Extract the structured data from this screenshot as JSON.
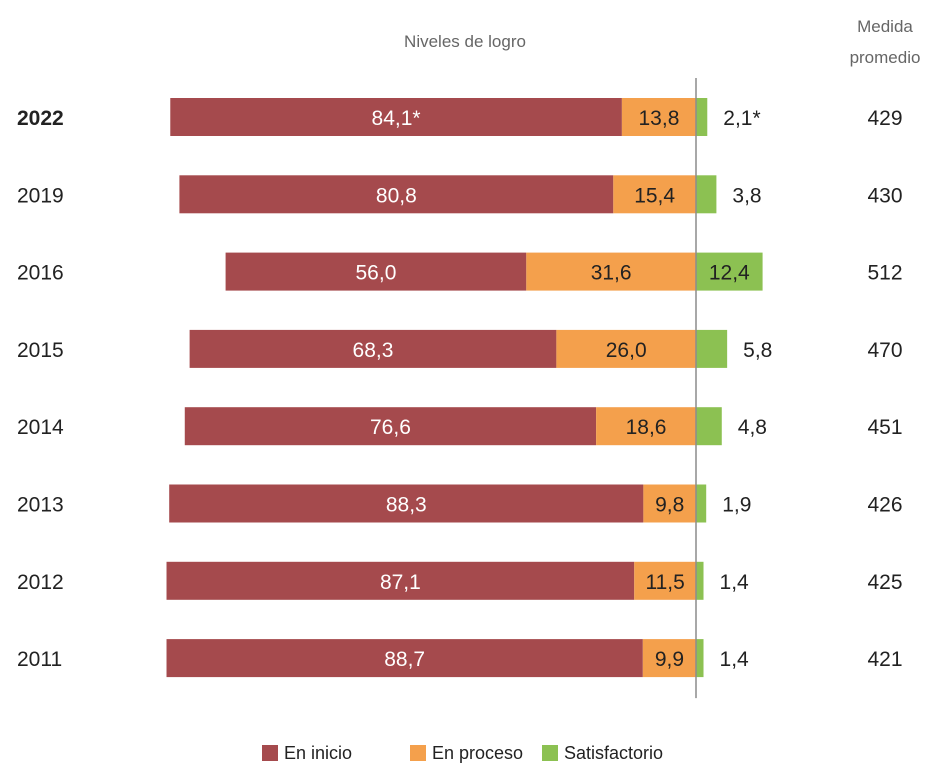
{
  "colors": {
    "en_inicio": "#A54A4D",
    "en_proceso": "#F4A04C",
    "satisfactorio": "#8CC152",
    "axis": "#8c8c8c"
  },
  "chart_data": {
    "type": "bar",
    "orientation": "horizontal",
    "stacked": true,
    "diverging": true,
    "header_levels": "Niveles de logro",
    "header_average_line1": "Medida",
    "header_average_line2": "promedio",
    "categories": [
      "2022",
      "2019",
      "2016",
      "2015",
      "2014",
      "2013",
      "2012",
      "2011"
    ],
    "bold_category": "2022",
    "series": [
      {
        "name": "En inicio",
        "values": [
          84.1,
          80.8,
          56.0,
          68.3,
          76.6,
          88.3,
          87.1,
          88.7
        ],
        "labels": [
          "84,1*",
          "80,8",
          "56,0",
          "68,3",
          "76,6",
          "88,3",
          "87,1",
          "88,7"
        ]
      },
      {
        "name": "En proceso",
        "values": [
          13.8,
          15.4,
          31.6,
          26.0,
          18.6,
          9.8,
          11.5,
          9.9
        ],
        "labels": [
          "13,8",
          "15,4",
          "31,6",
          "26,0",
          "18,6",
          "9,8",
          "11,5",
          "9,9"
        ]
      },
      {
        "name": "Satisfactorio",
        "values": [
          2.1,
          3.8,
          12.4,
          5.8,
          4.8,
          1.9,
          1.4,
          1.4
        ],
        "labels": [
          "2,1*",
          "3,8",
          "12,4",
          "5,8",
          "4,8",
          "1,9",
          "1,4",
          "1,4"
        ]
      }
    ],
    "average": [
      429,
      430,
      512,
      470,
      451,
      426,
      425,
      421
    ],
    "grid": false,
    "legend_position": "bottom"
  }
}
